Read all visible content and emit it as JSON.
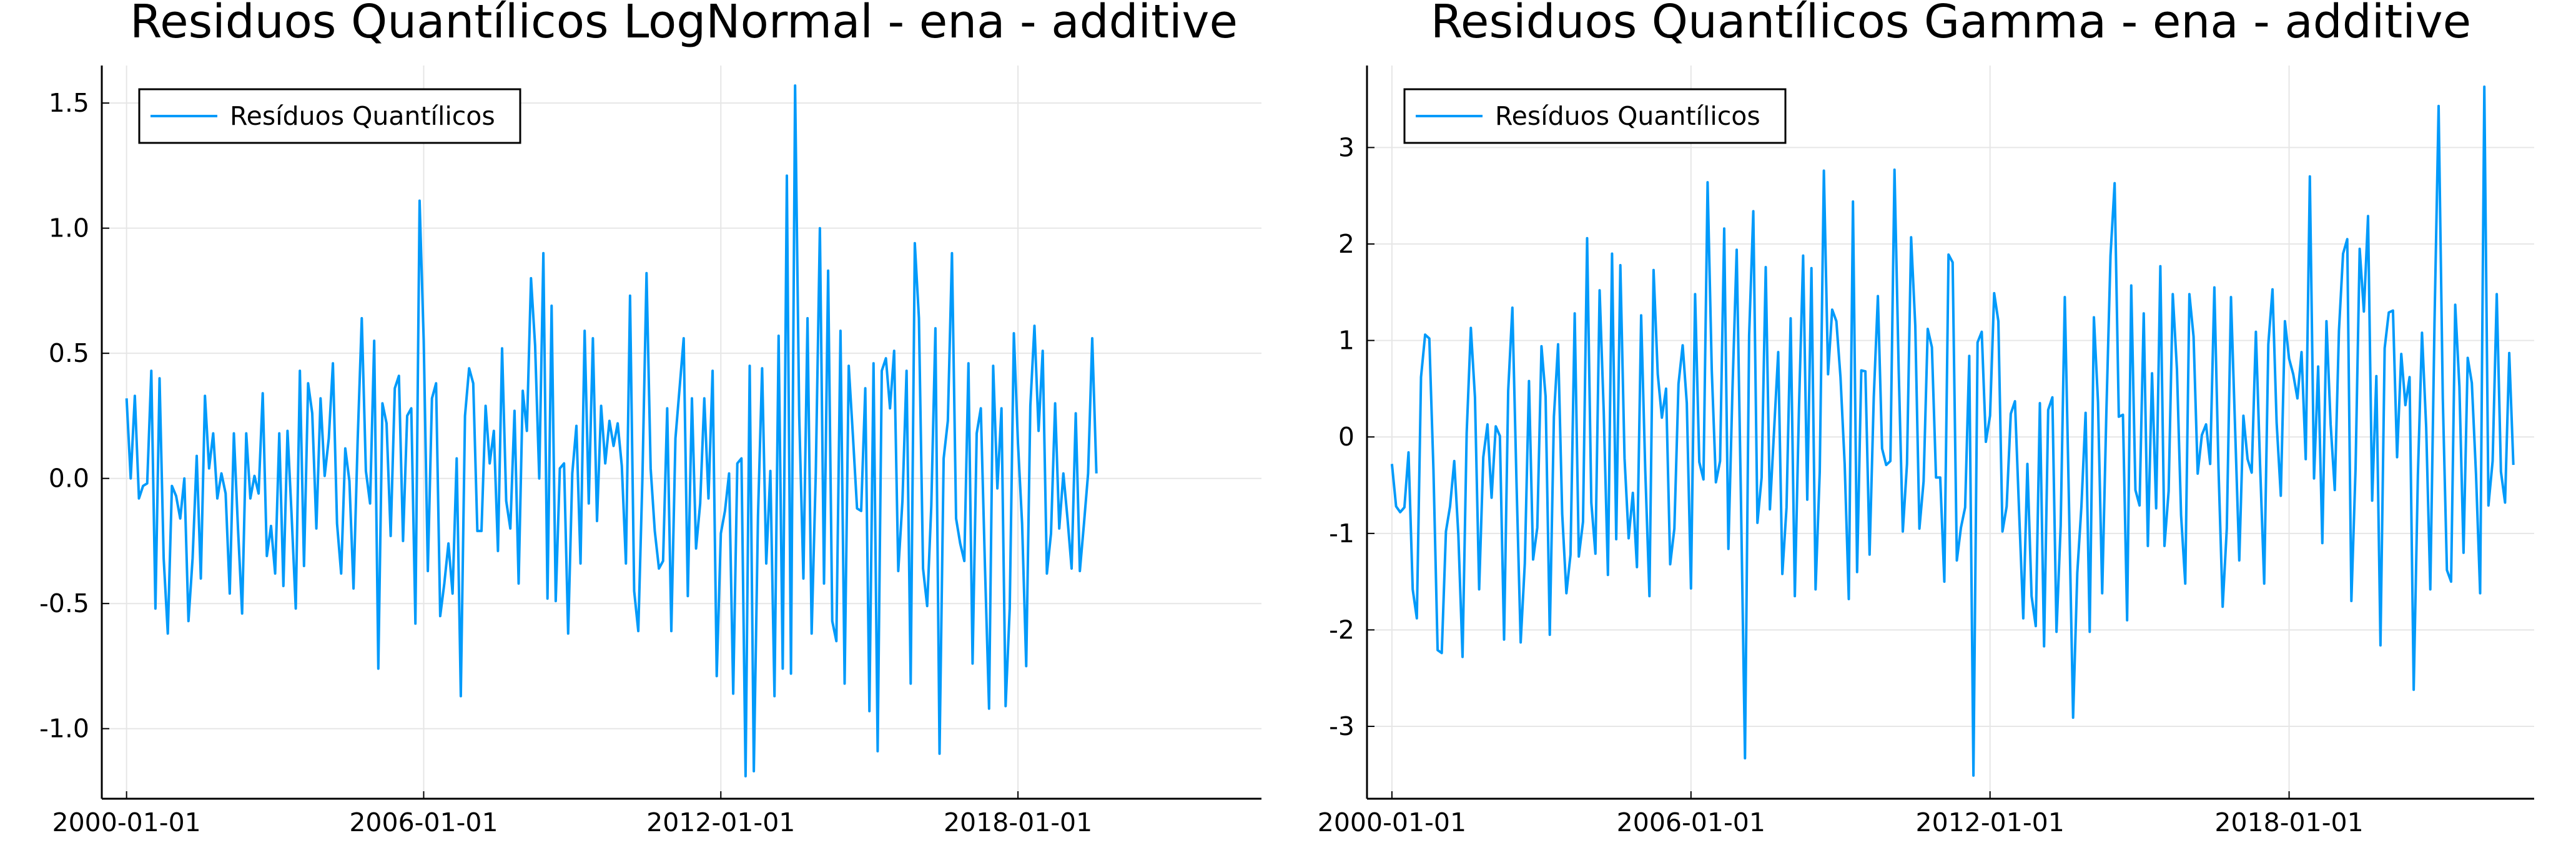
{
  "chart_data": [
    {
      "type": "line",
      "title": "Residuos Quantílicos LogNormal - ena - additive",
      "xlabel": "",
      "ylabel": "",
      "x_ticks": [
        "2000-01-01",
        "2006-01-01",
        "2012-01-01",
        "2018-01-01"
      ],
      "y_ticks": [
        "-1.0",
        "-0.5",
        "0.0",
        "0.5",
        "1.0",
        "1.5"
      ],
      "y_tick_values": [
        -1.0,
        -0.5,
        0.0,
        0.5,
        1.0,
        1.5
      ],
      "ylim": [
        -1.28,
        1.65
      ],
      "xlim": [
        "1999-07-01",
        "2022-12-01"
      ],
      "x_start": "2000-01-01",
      "x_step": "1 month",
      "grid": true,
      "legend_position": "top-left",
      "color": "#009AFA",
      "series": [
        {
          "name": "Resíduos Quantílicos",
          "values": [
            0.32,
            0.0,
            0.33,
            -0.08,
            -0.03,
            -0.02,
            0.43,
            -0.52,
            0.4,
            -0.32,
            -0.62,
            -0.03,
            -0.07,
            -0.16,
            0.0,
            -0.57,
            -0.32,
            0.09,
            -0.4,
            0.33,
            0.04,
            0.18,
            -0.08,
            0.02,
            -0.06,
            -0.46,
            0.18,
            -0.2,
            -0.54,
            0.18,
            -0.08,
            0.01,
            -0.06,
            0.34,
            -0.31,
            -0.19,
            -0.38,
            0.18,
            -0.43,
            0.19,
            -0.15,
            -0.52,
            0.43,
            -0.35,
            0.38,
            0.26,
            -0.2,
            0.32,
            0.01,
            0.16,
            0.46,
            -0.18,
            -0.38,
            0.12,
            -0.01,
            -0.44,
            0.15,
            0.64,
            0.03,
            -0.1,
            0.55,
            -0.76,
            0.3,
            0.22,
            -0.23,
            0.36,
            0.41,
            -0.25,
            0.25,
            0.28,
            -0.58,
            1.11,
            0.55,
            -0.37,
            0.32,
            0.38,
            -0.55,
            -0.42,
            -0.26,
            -0.46,
            0.08,
            -0.87,
            0.25,
            0.44,
            0.38,
            -0.21,
            -0.21,
            0.29,
            0.06,
            0.19,
            -0.29,
            0.52,
            -0.09,
            -0.2,
            0.27,
            -0.42,
            0.35,
            0.19,
            0.8,
            0.53,
            0.0,
            0.9,
            -0.48,
            0.69,
            -0.49,
            0.04,
            0.06,
            -0.62,
            0.02,
            0.21,
            -0.34,
            0.59,
            -0.1,
            0.56,
            -0.17,
            0.29,
            0.06,
            0.23,
            0.13,
            0.22,
            0.05,
            -0.34,
            0.73,
            -0.45,
            -0.61,
            0.0,
            0.82,
            0.04,
            -0.21,
            -0.36,
            -0.33,
            0.28,
            -0.61,
            0.16,
            0.36,
            0.56,
            -0.47,
            0.32,
            -0.28,
            -0.1,
            0.32,
            -0.08,
            0.43,
            -0.79,
            -0.22,
            -0.13,
            0.02,
            -0.86,
            0.06,
            0.08,
            -1.19,
            0.45,
            -1.17,
            -0.15,
            0.44,
            -0.34,
            0.03,
            -0.87,
            0.57,
            -0.76,
            1.21,
            -0.78,
            1.57,
            0.25,
            -0.4,
            0.64,
            -0.62,
            0.02,
            1.0,
            -0.42,
            0.83,
            -0.57,
            -0.65,
            0.59,
            -0.82,
            0.45,
            0.17,
            -0.12,
            -0.13,
            0.36,
            -0.93,
            0.46,
            -1.09,
            0.43,
            0.48,
            0.28,
            0.51,
            -0.37,
            -0.09,
            0.43,
            -0.82,
            0.94,
            0.64,
            -0.36,
            -0.51,
            -0.11,
            0.6,
            -1.1,
            0.08,
            0.23,
            0.9,
            -0.16,
            -0.26,
            -0.33,
            0.46,
            -0.74,
            0.18,
            0.28,
            -0.35,
            -0.92,
            0.45,
            -0.04,
            0.28,
            -0.91,
            -0.52,
            0.58,
            0.14,
            -0.18,
            -0.75,
            0.29,
            0.61,
            0.19,
            0.51,
            -0.38,
            -0.22,
            0.3,
            -0.2,
            0.02,
            -0.16,
            -0.36,
            0.26,
            -0.37,
            -0.18,
            0.02,
            0.56,
            0.02
          ]
        }
      ]
    },
    {
      "type": "line",
      "title": "Residuos Quantílicos Gamma - ena - additive",
      "xlabel": "",
      "ylabel": "",
      "x_ticks": [
        "2000-01-01",
        "2006-01-01",
        "2012-01-01",
        "2018-01-01"
      ],
      "y_ticks": [
        "-3",
        "-2",
        "-1",
        "0",
        "1",
        "2",
        "3"
      ],
      "y_tick_values": [
        -3,
        -2,
        -1,
        0,
        1,
        2,
        3
      ],
      "ylim": [
        -3.75,
        3.85
      ],
      "xlim": [
        "1999-07-01",
        "2022-12-01"
      ],
      "x_start": "2000-01-01",
      "x_step": "1 month",
      "grid": true,
      "legend_position": "top-left",
      "color": "#009AFA",
      "series": [
        {
          "name": "Resíduos Quantílicos",
          "values": [
            -0.28,
            -0.72,
            -0.78,
            -0.73,
            -0.16,
            -1.58,
            -1.88,
            0.62,
            1.06,
            1.02,
            -0.34,
            -2.21,
            -2.24,
            -0.98,
            -0.72,
            -0.25,
            -1.02,
            -2.28,
            0.04,
            1.13,
            0.41,
            -1.58,
            -0.21,
            0.13,
            -0.63,
            0.11,
            0.01,
            -2.1,
            0.48,
            1.34,
            -0.47,
            -2.13,
            -1.31,
            0.58,
            -1.27,
            -0.94,
            0.94,
            0.42,
            -2.05,
            0.21,
            0.96,
            -0.8,
            -1.62,
            -1.22,
            1.28,
            -1.24,
            -0.88,
            2.06,
            -0.68,
            -1.21,
            1.52,
            0.26,
            -1.43,
            1.9,
            -1.06,
            1.78,
            -0.22,
            -1.05,
            -0.58,
            -1.35,
            1.26,
            -0.35,
            -1.65,
            1.73,
            0.65,
            0.2,
            0.5,
            -1.32,
            -0.95,
            0.55,
            0.95,
            0.35,
            -1.57,
            1.48,
            -0.26,
            -0.44,
            2.64,
            0.69,
            -0.47,
            -0.25,
            2.16,
            -1.16,
            0.51,
            1.94,
            -0.56,
            -3.33,
            1.05,
            2.34,
            -0.89,
            -0.42,
            1.76,
            -0.75,
            0.06,
            0.88,
            -1.42,
            -0.73,
            1.23,
            -1.65,
            0.29,
            1.88,
            -0.65,
            1.75,
            -1.58,
            -0.36,
            2.76,
            0.65,
            1.32,
            1.2,
            0.62,
            -0.28,
            -1.68,
            2.44,
            -1.4,
            0.69,
            0.68,
            -1.22,
            0.41,
            1.46,
            -0.12,
            -0.29,
            -0.25,
            2.77,
            0.7,
            -0.98,
            -0.28,
            2.07,
            1.15,
            -0.95,
            -0.46,
            1.12,
            0.93,
            -0.42,
            -0.42,
            -1.5,
            1.89,
            1.81,
            -1.28,
            -0.94,
            -0.73,
            0.84,
            -3.51,
            0.98,
            1.09,
            -0.05,
            0.22,
            1.49,
            1.2,
            -0.98,
            -0.72,
            0.24,
            0.37,
            -0.77,
            -1.88,
            -0.28,
            -1.65,
            -1.96,
            0.35,
            -2.17,
            0.28,
            0.41,
            -2.02,
            -0.92,
            1.45,
            -0.69,
            -2.91,
            -1.41,
            -0.72,
            0.25,
            -2.02,
            1.24,
            0.36,
            -1.62,
            0.24,
            1.88,
            2.63,
            0.21,
            0.23,
            -1.9,
            1.57,
            -0.55,
            -0.71,
            1.28,
            -1.13,
            0.66,
            -0.74,
            1.77,
            -1.13,
            -0.56,
            1.48,
            0.7,
            -0.81,
            -1.52,
            1.48,
            1.04,
            -0.38,
            0.02,
            0.13,
            -0.28,
            1.55,
            -0.32,
            -1.76,
            -0.95,
            1.45,
            0.09,
            -1.28,
            0.22,
            -0.23,
            -0.37,
            1.09,
            -0.27,
            -1.52,
            0.96,
            1.53,
            0.15,
            -0.61,
            1.2,
            0.81,
            0.65,
            0.4,
            0.88,
            -0.23,
            2.7,
            -0.43,
            0.73,
            -1.1,
            1.2,
            0.13,
            -0.55,
            1.1,
            1.9,
            2.05,
            -1.7,
            -0.33,
            1.95,
            1.3,
            2.29,
            -0.66,
            0.63,
            -2.16,
            0.92,
            1.29,
            1.31,
            -0.21,
            0.86,
            0.33,
            0.62,
            -2.62,
            -0.4,
            1.08,
            0.1,
            -1.58,
            1.18,
            3.43,
            0.4,
            -1.38,
            -1.5,
            1.37,
            0.52,
            -1.2,
            0.82,
            0.56,
            -0.39,
            -1.62,
            3.63,
            -0.71,
            -0.25,
            1.48,
            -0.36,
            -0.68,
            0.87,
            -0.29
          ]
        }
      ]
    }
  ]
}
